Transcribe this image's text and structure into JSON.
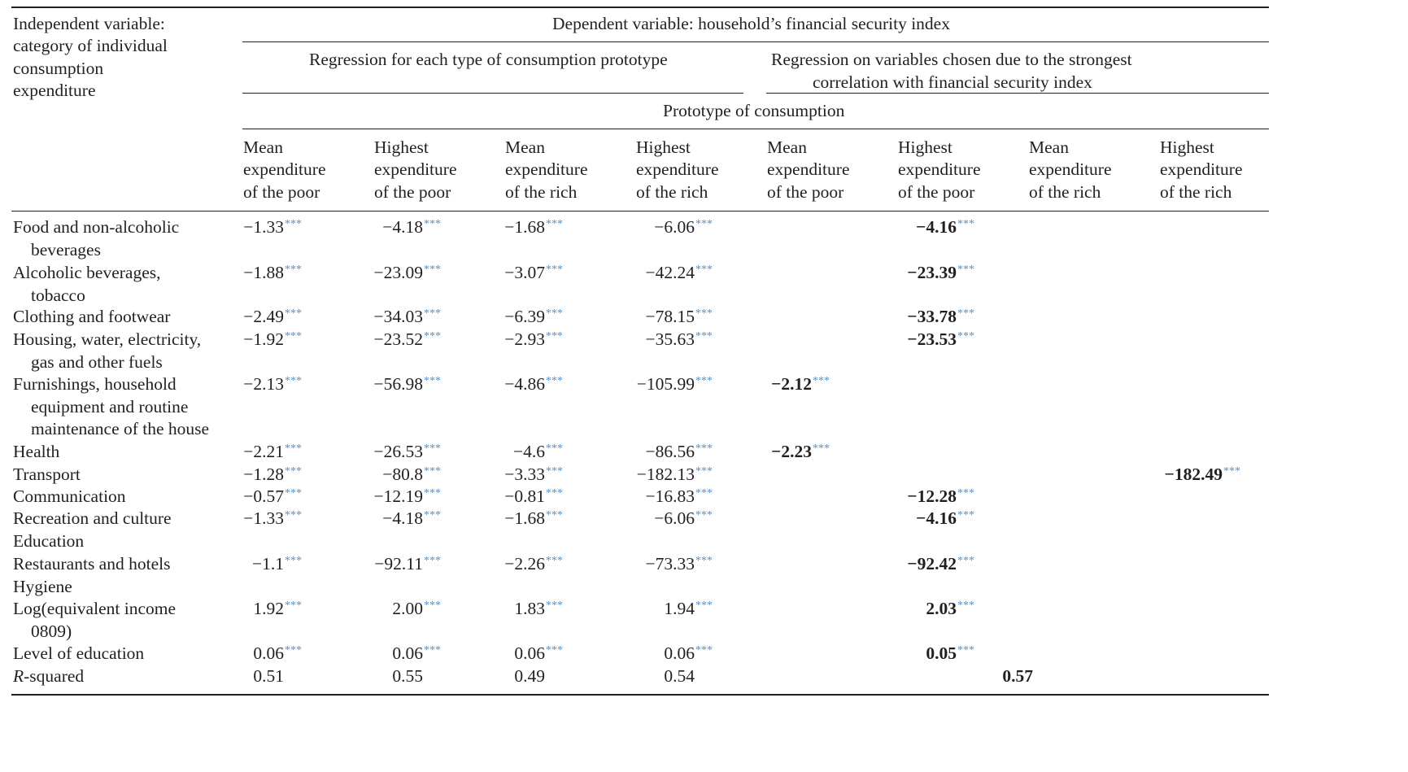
{
  "table": {
    "corner_header": [
      "Independent variable:",
      "category of individual",
      "consumption",
      "expenditure"
    ],
    "dependent_header": "Dependent variable: household’s financial security index",
    "group_left": "Regression for each type of consumption prototype",
    "group_right": [
      "Regression on variables chosen due to the strongest",
      "correlation with financial security index"
    ],
    "prototype_header": "Prototype of consumption",
    "columns": [
      [
        "Mean",
        "expenditure",
        "of the poor"
      ],
      [
        "Highest",
        "expenditure",
        "of the poor"
      ],
      [
        "Mean",
        "expenditure",
        "of the rich"
      ],
      [
        "Highest",
        "expenditure",
        "of the rich"
      ],
      [
        "Mean",
        "expenditure",
        "of the poor"
      ],
      [
        "Highest",
        "expenditure",
        "of the poor"
      ],
      [
        "Mean",
        "expenditure",
        "of the rich"
      ],
      [
        "Highest",
        "expenditure",
        "of the rich"
      ]
    ],
    "significance_marker": "***",
    "rows": [
      {
        "label": [
          "Food and non-alcoholic",
          "beverages"
        ],
        "values": [
          "−1.33",
          "−4.18",
          "−1.68",
          "−6.06",
          "",
          "−4.16",
          "",
          ""
        ]
      },
      {
        "label": [
          "Alcoholic beverages,",
          "tobacco"
        ],
        "values": [
          "−1.88",
          "−23.09",
          "−3.07",
          "−42.24",
          "",
          "−23.39",
          "",
          ""
        ]
      },
      {
        "label": [
          "Clothing and footwear"
        ],
        "values": [
          "−2.49",
          "−34.03",
          "−6.39",
          "−78.15",
          "",
          "−33.78",
          "",
          ""
        ]
      },
      {
        "label": [
          "Housing, water, electricity,",
          "gas and other fuels"
        ],
        "values": [
          "−1.92",
          "−23.52",
          "−2.93",
          "−35.63",
          "",
          "−23.53",
          "",
          ""
        ]
      },
      {
        "label": [
          "Furnishings, household",
          "equipment and routine",
          "maintenance of the house"
        ],
        "values": [
          "−2.13",
          "−56.98",
          "−4.86",
          "−105.99",
          "−2.12",
          "",
          "",
          ""
        ]
      },
      {
        "label": [
          "Health"
        ],
        "values": [
          "−2.21",
          "−26.53",
          "−4.6",
          "−86.56",
          "−2.23",
          "",
          "",
          ""
        ]
      },
      {
        "label": [
          "Transport"
        ],
        "values": [
          "−1.28",
          "−80.8",
          "−3.33",
          "−182.13",
          "",
          "",
          "",
          "−182.49"
        ]
      },
      {
        "label": [
          "Communication"
        ],
        "values": [
          "−0.57",
          "−12.19",
          "−0.81",
          "−16.83",
          "",
          "−12.28",
          "",
          ""
        ]
      },
      {
        "label": [
          "Recreation and culture"
        ],
        "values": [
          "−1.33",
          "−4.18",
          "−1.68",
          "−6.06",
          "",
          "−4.16",
          "",
          ""
        ]
      },
      {
        "label": [
          "Education"
        ],
        "values": [
          "",
          "",
          "",
          "",
          "",
          "",
          "",
          ""
        ]
      },
      {
        "label": [
          "Restaurants and hotels"
        ],
        "values": [
          "−1.1",
          "−92.11",
          "−2.26",
          "−73.33",
          "",
          "−92.42",
          "",
          ""
        ]
      },
      {
        "label": [
          "Hygiene"
        ],
        "values": [
          "",
          "",
          "",
          "",
          "",
          "",
          "",
          ""
        ]
      },
      {
        "label": [
          "Log(equivalent income",
          "0809)"
        ],
        "values": [
          "1.92",
          "2.00",
          "1.83",
          "1.94",
          "",
          "2.03",
          "",
          ""
        ]
      },
      {
        "label": [
          "Level of education"
        ],
        "values": [
          "0.06",
          "0.06",
          "0.06",
          "0.06",
          "",
          "0.05",
          "",
          ""
        ]
      }
    ],
    "r_squared": {
      "label": "R-squared",
      "values": [
        "0.51",
        "0.55",
        "0.49",
        "0.54"
      ],
      "combined_value": "0.57"
    }
  }
}
